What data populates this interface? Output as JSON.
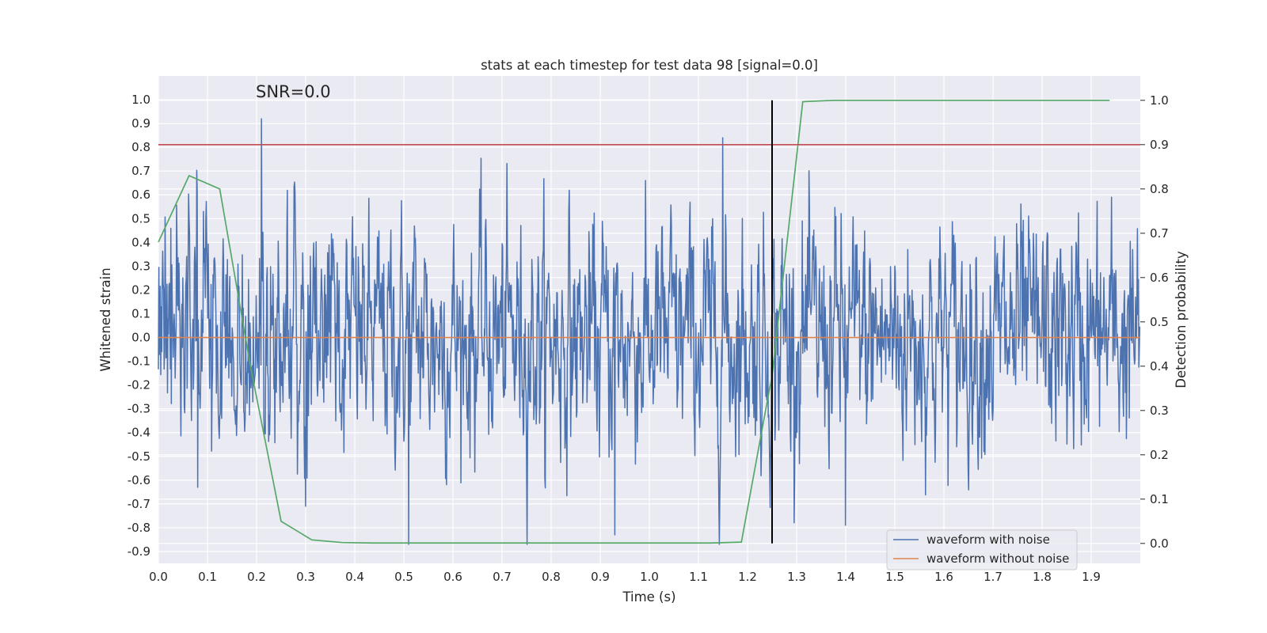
{
  "chart_data": {
    "type": "line",
    "title": "stats at each timestep for test data 98 [signal=0.0]",
    "annotation": "SNR=0.0",
    "xlabel": "Time (s)",
    "ylabel": "Whitened strain",
    "y2label": "Detection probability",
    "xlim": [
      0.0,
      2.0
    ],
    "ylim": [
      -0.95,
      1.1
    ],
    "y2lim": [
      -0.045,
      1.055
    ],
    "xticks": [
      "0.0",
      "0.1",
      "0.2",
      "0.3",
      "0.4",
      "0.5",
      "0.6",
      "0.7",
      "0.8",
      "0.9",
      "1.0",
      "1.1",
      "1.2",
      "1.3",
      "1.4",
      "1.5",
      "1.6",
      "1.7",
      "1.8",
      "1.9"
    ],
    "yticks": [
      "1.0",
      "0.9",
      "0.8",
      "0.7",
      "0.6",
      "0.5",
      "0.4",
      "0.3",
      "0.2",
      "0.1",
      "0.0",
      "-0.1",
      "-0.2",
      "-0.3",
      "-0.4",
      "-0.5",
      "-0.6",
      "-0.7",
      "-0.8",
      "-0.9"
    ],
    "y2ticks": [
      "1.0",
      "0.9",
      "0.8",
      "0.7",
      "0.6",
      "0.5",
      "0.4",
      "0.3",
      "0.2",
      "0.1",
      "0.0"
    ],
    "grid": true,
    "legend": {
      "placement": "lower-right",
      "entries": [
        {
          "label": "waveform with noise",
          "color": "#4c72b0"
        },
        {
          "label": "waveform without noise",
          "color": "#dd8452"
        }
      ]
    },
    "series": [
      {
        "name": "waveform with noise",
        "axis": "left",
        "color": "#4c72b0",
        "sample_count": 2048,
        "approx_range": [
          -0.87,
          0.92
        ],
        "peaks": [
          {
            "x": 0.21,
            "y": 0.92
          },
          {
            "x": 0.51,
            "y": -0.87
          },
          {
            "x": 1.15,
            "y": 0.84
          },
          {
            "x": 0.93,
            "y": -0.83
          },
          {
            "x": 1.4,
            "y": -0.79
          },
          {
            "x": 0.3,
            "y": -0.71
          },
          {
            "x": 0.08,
            "y": -0.63
          }
        ]
      },
      {
        "name": "waveform without noise",
        "axis": "left",
        "color": "#dd8452",
        "x": [
          0.0,
          2.0
        ],
        "y": [
          0.0,
          0.0
        ]
      },
      {
        "axis": "right",
        "color": "#55a868",
        "x": [
          0.0,
          0.0625,
          0.125,
          0.1875,
          0.25,
          0.3125,
          0.375,
          0.4375,
          0.5,
          0.5625,
          0.625,
          0.6875,
          0.75,
          0.8125,
          0.875,
          0.9375,
          1.0,
          1.0625,
          1.125,
          1.1875,
          1.25,
          1.3125,
          1.375,
          1.4375,
          1.5,
          1.5625,
          1.625,
          1.6875,
          1.75,
          1.8125,
          1.875,
          1.9375
        ],
        "y": [
          0.68,
          0.83,
          0.8,
          0.4,
          0.05,
          0.008,
          0.002,
          0.001,
          0.001,
          0.001,
          0.001,
          0.001,
          0.001,
          0.001,
          0.001,
          0.001,
          0.001,
          0.001,
          0.001,
          0.003,
          0.38,
          0.997,
          1.0,
          1.0,
          1.0,
          1.0,
          1.0,
          1.0,
          1.0,
          1.0,
          1.0,
          1.0
        ]
      },
      {
        "axis": "right",
        "color": "#c44e52",
        "x": [
          0.0,
          2.0
        ],
        "y": [
          0.9,
          0.9
        ]
      },
      {
        "axis": "right",
        "color": "#000000",
        "x": [
          1.25,
          1.25
        ],
        "y": [
          0.0,
          1.0
        ]
      }
    ]
  }
}
